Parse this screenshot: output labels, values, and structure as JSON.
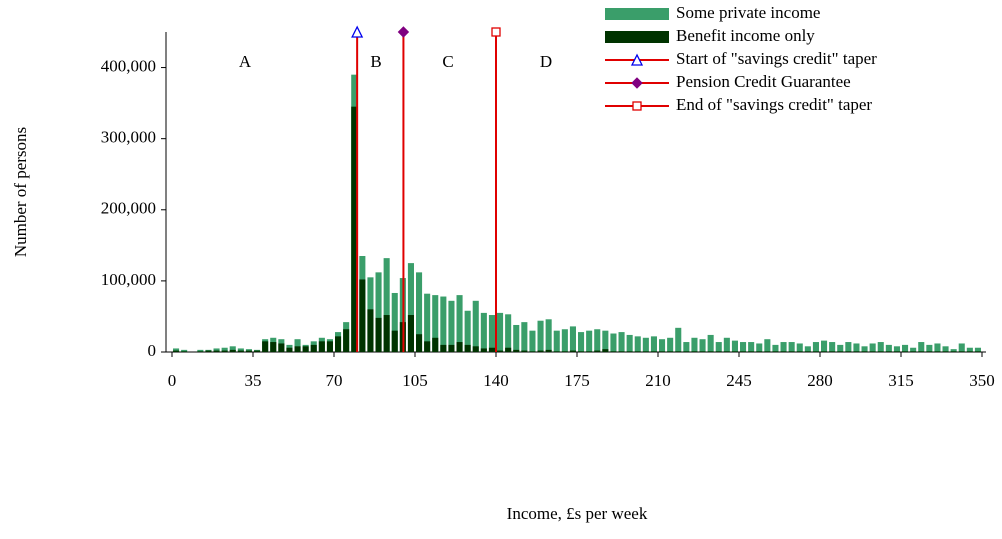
{
  "chart_data": {
    "type": "histogram",
    "x_label": "Income, £s per week",
    "y_label": "Number of persons",
    "bins": [
      0,
      3.5,
      7,
      10.5,
      14,
      17.5,
      21,
      24.5,
      28,
      31.5,
      35,
      38.5,
      42,
      45.5,
      49,
      52.5,
      56,
      59.5,
      63,
      66.5,
      70,
      73.5,
      77,
      80.5,
      84,
      87.5,
      91,
      94.5,
      98,
      101.5,
      105,
      108.5,
      112,
      115.5,
      119,
      122.5,
      126,
      129.5,
      133,
      136.5,
      140,
      143.5,
      147,
      150.5,
      154,
      157.5,
      161,
      164.5,
      168,
      171.5,
      175,
      178.5,
      182,
      185.5,
      189,
      192.5,
      196,
      199.5,
      203,
      206.5,
      210,
      213.5,
      217,
      220.5,
      224,
      227.5,
      231,
      234.5,
      238,
      241.5,
      245,
      248.5,
      252,
      255.5,
      259,
      262.5,
      266,
      269.5,
      273,
      276.5,
      280,
      283.5,
      287,
      290.5,
      294,
      297.5,
      301,
      304.5,
      308,
      311.5,
      315,
      318.5,
      322,
      325.5,
      329,
      332.5,
      336,
      339.5,
      343,
      346.5,
      350
    ],
    "series": [
      {
        "name": "Some private income",
        "color": "#3a9e6a",
        "values": [
          5000,
          3000,
          0,
          3000,
          3000,
          5000,
          6000,
          8000,
          5000,
          4000,
          3000,
          18000,
          20000,
          18000,
          10000,
          18000,
          10000,
          15000,
          20000,
          18000,
          28000,
          42000,
          390000,
          135000,
          105000,
          112000,
          132000,
          83000,
          104000,
          125000,
          112000,
          82000,
          80000,
          78000,
          72000,
          80000,
          58000,
          72000,
          55000,
          52000,
          55000,
          53000,
          38000,
          42000,
          30000,
          44000,
          46000,
          30000,
          32000,
          36000,
          28000,
          30000,
          32000,
          30000,
          26000,
          28000,
          24000,
          22000,
          20000,
          22000,
          18000,
          20000,
          34000,
          14000,
          20000,
          18000,
          24000,
          14000,
          20000,
          16000,
          14000,
          14000,
          12000,
          18000,
          10000,
          14000,
          14000,
          12000,
          8000,
          14000,
          16000,
          14000,
          10000,
          14000,
          12000,
          8000,
          12000,
          14000,
          10000,
          8000,
          10000,
          6000,
          14000,
          10000,
          12000,
          8000,
          4000,
          12000,
          6000,
          6000
        ]
      },
      {
        "name": "Benefit income only",
        "color": "#003300",
        "values": [
          2000,
          1000,
          0,
          1000,
          2000,
          2000,
          2000,
          3000,
          2000,
          2000,
          2000,
          15000,
          14000,
          12000,
          6000,
          8000,
          8000,
          10000,
          15000,
          15000,
          22000,
          32000,
          345000,
          102000,
          60000,
          48000,
          52000,
          30000,
          42000,
          52000,
          25000,
          15000,
          20000,
          10000,
          10000,
          14000,
          10000,
          8000,
          5000,
          6000,
          2000,
          6000,
          3000,
          2000,
          1000,
          2000,
          3000,
          1000,
          1000,
          2000,
          1000,
          1000,
          2000,
          4000,
          1000,
          1000,
          1000,
          1000,
          1000,
          1000,
          1000,
          1000,
          1000,
          1000,
          1000,
          1000,
          1000,
          1000,
          1000,
          1000,
          1000,
          1000,
          1000,
          1000,
          1000,
          1000,
          1000,
          1000,
          1000,
          1000,
          1000,
          1000,
          1000,
          1000,
          1000,
          1000,
          1000,
          1000,
          1000,
          1000,
          1000,
          1000,
          1000,
          1000,
          1000,
          1000,
          1000,
          1000,
          1000,
          1000
        ]
      }
    ],
    "reference_lines": [
      {
        "name": "Start of \"savings credit\" taper",
        "color": "#e00000",
        "marker": "triangle",
        "marker_color": "#0000ee",
        "x": [
          80,
          80
        ],
        "y": [
          0,
          450000
        ]
      },
      {
        "name": "Pension Credit Guarantee",
        "color": "#e00000",
        "marker": "diamond",
        "marker_color": "#800080",
        "x": [
          100,
          100
        ],
        "y": [
          0,
          450000
        ]
      },
      {
        "name": "End of \"savings credit\" taper",
        "color": "#e00000",
        "marker": "square",
        "marker_color": "#e00000",
        "x": [
          140,
          140
        ],
        "y": [
          0,
          450000
        ]
      }
    ],
    "annotations": [
      "A",
      "B",
      "C",
      "D"
    ],
    "xlim": [
      0,
      350
    ],
    "xticks": [
      0,
      35,
      70,
      105,
      140,
      175,
      210,
      245,
      280,
      315,
      350
    ],
    "ylim": [
      0,
      450000
    ],
    "yticks": [
      0,
      {
        "value": 100000,
        "label": "100,000"
      },
      {
        "value": 200000,
        "label": "200,000"
      },
      {
        "value": 300000,
        "label": "300,000"
      },
      {
        "value": 400000,
        "label": "400,000"
      }
    ]
  }
}
